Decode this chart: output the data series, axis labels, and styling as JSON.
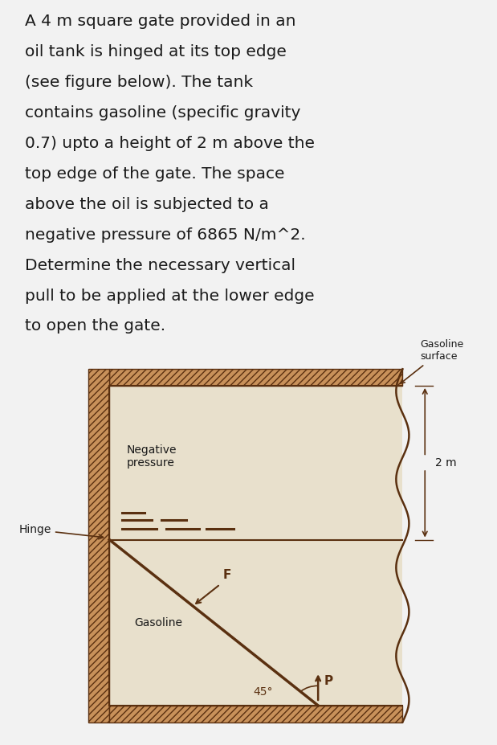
{
  "title_lines": [
    "A 4 m square gate provided in an",
    "oil tank is hinged at its top edge",
    "(see figure below). The tank",
    "contains gasoline (specific gravity",
    "0.7) upto a height of 2 m above the",
    "top edge of the gate. The space",
    "above the oil is subjected to a",
    "negative pressure of 6865 N/m^2.",
    "Determine the necessary vertical",
    "pull to be applied at the lower edge",
    "to open the gate."
  ],
  "neg_pressure_label": "Negative\npressure",
  "gasoline_label": "Gasoline",
  "gasoline_surface_label": "Gasoline\nsurface",
  "hinge_label": "Hinge",
  "dim_label": "2 m",
  "angle_label": "45°",
  "F_label": "F",
  "P_label": "P",
  "photo_bg": "#c4a882",
  "wall_fill": "#c8915a",
  "inner_bg": "#e8e0cc",
  "line_color": "#5a3010",
  "text_bg": "#f2f2f2"
}
